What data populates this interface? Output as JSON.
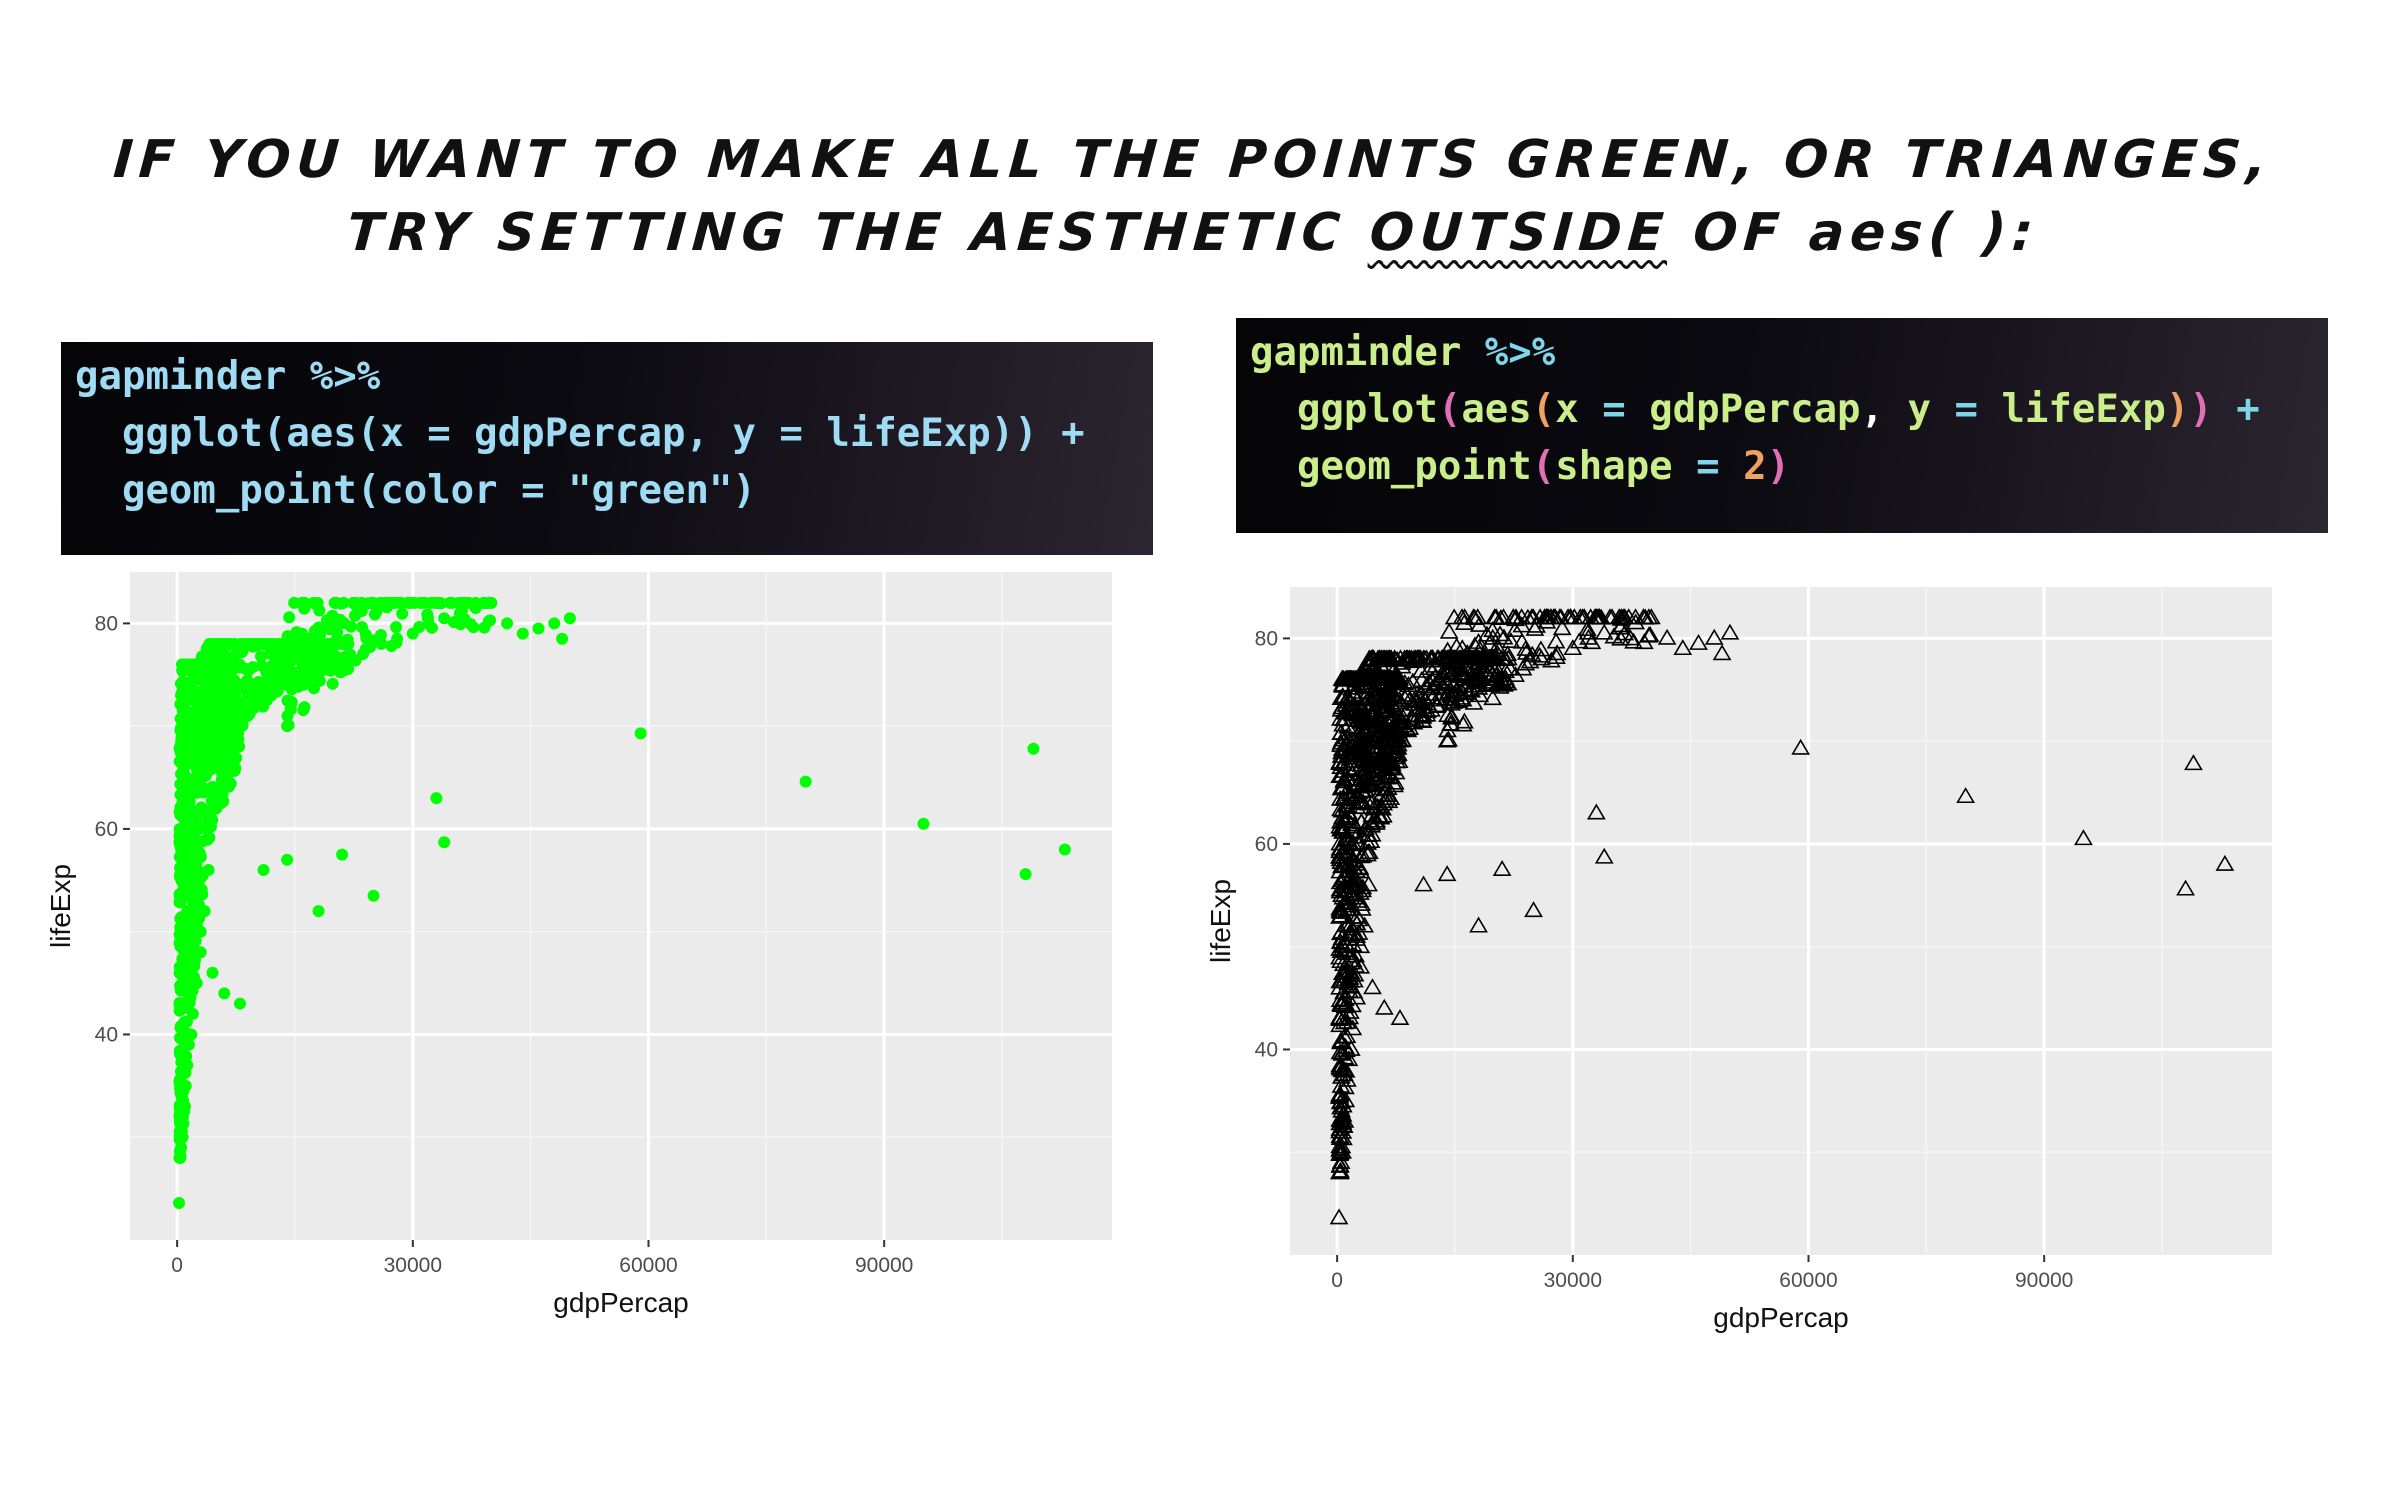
{
  "headline": {
    "line1": "IF YOU WANT TO MAKE ALL THE POINTS GREEN, OR TRIANGES,",
    "line2_pre": "TRY SETTING THE AESTHETIC ",
    "line2_emph": "OUTSIDE",
    "line2_post": " OF aes( ):"
  },
  "code_left": {
    "lines": [
      {
        "parts": [
          {
            "t": "gapminder %>%",
            "c": "#9fdcf4"
          }
        ]
      },
      {
        "parts": [
          {
            "t": "  ggplot(aes(x = gdpPercap, y = lifeExp)) +",
            "c": "#9fdcf4"
          }
        ]
      },
      {
        "parts": [
          {
            "t": "  geom_point(color = \"green\")",
            "c": "#9fdcf4"
          }
        ]
      }
    ]
  },
  "code_right": {
    "lines": [
      {
        "parts": [
          {
            "t": "gapminder",
            "c": "#c9ee8a"
          },
          {
            "t": " %>%",
            "c": "#7fd6ea"
          }
        ]
      },
      {
        "parts": [
          {
            "t": "  ggplot",
            "c": "#c9ee8a"
          },
          {
            "t": "(",
            "c": "#e06fb8"
          },
          {
            "t": "aes",
            "c": "#c9ee8a"
          },
          {
            "t": "(",
            "c": "#f0a060"
          },
          {
            "t": "x",
            "c": "#c9ee8a"
          },
          {
            "t": " = ",
            "c": "#7fd6ea"
          },
          {
            "t": "gdpPercap",
            "c": "#c9ee8a"
          },
          {
            "t": ", ",
            "c": "#ffffff"
          },
          {
            "t": "y",
            "c": "#c9ee8a"
          },
          {
            "t": " = ",
            "c": "#7fd6ea"
          },
          {
            "t": "lifeExp",
            "c": "#c9ee8a"
          },
          {
            "t": ")",
            "c": "#f0a060"
          },
          {
            "t": ")",
            "c": "#e06fb8"
          },
          {
            "t": " +",
            "c": "#7fd6ea"
          }
        ]
      },
      {
        "parts": [
          {
            "t": "  geom_point",
            "c": "#c9ee8a"
          },
          {
            "t": "(",
            "c": "#e06fb8"
          },
          {
            "t": "shape",
            "c": "#c9ee8a"
          },
          {
            "t": " = ",
            "c": "#7fd6ea"
          },
          {
            "t": "2",
            "c": "#f0a060"
          },
          {
            "t": ")",
            "c": "#e06fb8"
          }
        ]
      }
    ]
  },
  "chart_data": [
    {
      "type": "scatter",
      "title": "",
      "xlabel": "gdpPercap",
      "ylabel": "lifeExp",
      "xlim": [
        -6000,
        119000
      ],
      "ylim": [
        20,
        85
      ],
      "xticks": [
        "0",
        "30000",
        "60000",
        "90000"
      ],
      "yticks": [
        "40",
        "60",
        "80"
      ],
      "point_color": "#00ff00",
      "marker": "circle",
      "grid": true,
      "x": [
        241,
        500,
        700,
        800,
        900,
        1000,
        1100,
        1300,
        1500,
        1800,
        2000,
        2500,
        3000,
        3500,
        4000,
        5000,
        6000,
        7000,
        8000,
        9000,
        10000,
        11000,
        12000,
        13000,
        15000,
        17000,
        19000,
        20000,
        22000,
        24000,
        26000,
        28000,
        30000,
        32000,
        34000,
        36000,
        38000,
        40000,
        42000,
        44000,
        46000,
        48000,
        49000,
        50000,
        33000,
        34000,
        59000,
        80000,
        95000,
        108000,
        109000,
        113000,
        2000,
        3000,
        4500,
        6000,
        8000,
        11000,
        14000,
        18000,
        21000,
        25000,
        1500,
        1200,
        2200,
        1600,
        2600,
        3200,
        4000
      ],
      "y": [
        23.6,
        29,
        30,
        31.3,
        32.5,
        33,
        35,
        37,
        39,
        40,
        42,
        45,
        48,
        52,
        56,
        62,
        66,
        68,
        70,
        71,
        72,
        72.5,
        73,
        74,
        74.5,
        75,
        75.5,
        76,
        77,
        77.5,
        78,
        78.5,
        79,
        80,
        80.5,
        81,
        81.5,
        82,
        80,
        79,
        79.5,
        80,
        78.5,
        80.5,
        63,
        58.7,
        69.3,
        64.6,
        60.5,
        55.6,
        67.8,
        58,
        55,
        50,
        46,
        44,
        43,
        56,
        57,
        52,
        57.5,
        53.5,
        60,
        65,
        68,
        70,
        72,
        73,
        74
      ],
      "jitter_cloud": [
        {
          "x0": 300,
          "x1": 8000,
          "y0": 28,
          "y1": 76,
          "n": 700
        },
        {
          "x0": 3000,
          "x1": 22000,
          "y0": 64,
          "y1": 78,
          "n": 380
        },
        {
          "x0": 14000,
          "x1": 40000,
          "y0": 70,
          "y1": 82,
          "n": 160
        }
      ]
    },
    {
      "type": "scatter",
      "title": "",
      "xlabel": "gdpPercap",
      "ylabel": "lifeExp",
      "xlim": [
        -6000,
        119000
      ],
      "ylim": [
        20,
        85
      ],
      "xticks": [
        "0",
        "30000",
        "60000",
        "90000"
      ],
      "yticks": [
        "40",
        "60",
        "80"
      ],
      "point_color": "#000000",
      "marker": "open-triangle",
      "grid": true,
      "same_data_as_left": true
    }
  ]
}
